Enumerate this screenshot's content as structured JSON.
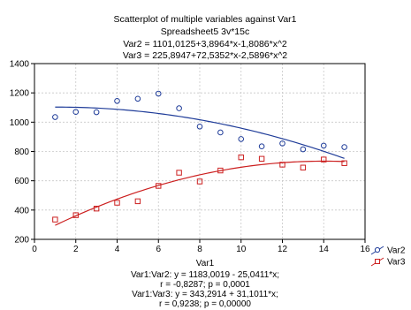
{
  "chart_data": {
    "type": "scatter",
    "title_lines": [
      "Scatterplot of multiple variables against Var1",
      "Spreadsheet5 3v*15c",
      "Var2 = 1101,0125+3,8964*x-1,8086*x^2",
      "Var3 = 225,8947+72,5352*x-2,5896*x^2"
    ],
    "xlabel": "Var1",
    "xlim": [
      0,
      16
    ],
    "ylim": [
      200,
      1400
    ],
    "x_ticks": [
      0,
      2,
      4,
      6,
      8,
      10,
      12,
      14,
      16
    ],
    "x_tick_labels": [
      "0",
      "2",
      "4",
      "6",
      "8",
      "10",
      "12",
      "14",
      "16"
    ],
    "y_ticks": [
      200,
      400,
      600,
      800,
      1000,
      1200,
      1400
    ],
    "y_tick_labels": [
      "200",
      "400",
      "600",
      "800",
      "1000",
      "1200",
      "1400"
    ],
    "grid": true,
    "legend_position": "right",
    "series": [
      {
        "name": "Var2",
        "color": "#1f3c99",
        "marker": "circle",
        "x": [
          1,
          2,
          3,
          4,
          5,
          6,
          7,
          8,
          9,
          10,
          11,
          12,
          13,
          14,
          15
        ],
        "y": [
          1035,
          1070,
          1068,
          1145,
          1160,
          1195,
          1095,
          970,
          930,
          885,
          835,
          855,
          815,
          840,
          830
        ],
        "fit": {
          "a": 1101.0125,
          "b": 3.8964,
          "c": -1.8086
        }
      },
      {
        "name": "Var3",
        "color": "#cc1f1f",
        "marker": "square",
        "x": [
          1,
          2,
          3,
          4,
          5,
          6,
          7,
          8,
          9,
          10,
          11,
          12,
          13,
          14,
          15
        ],
        "y": [
          335,
          365,
          410,
          450,
          460,
          565,
          655,
          595,
          670,
          760,
          750,
          710,
          690,
          745,
          720
        ],
        "fit": {
          "a": 225.8947,
          "b": 72.5352,
          "c": -2.5896
        }
      }
    ],
    "footer_lines": [
      "Var1:Var2:   y = 1183,0019 - 25,0411*x;",
      "r = -0,8287; p = 0,0001",
      "Var1:Var3:   y = 343,2914 + 31,1011*x;",
      "r = 0,9238; p = 0,00000"
    ]
  }
}
